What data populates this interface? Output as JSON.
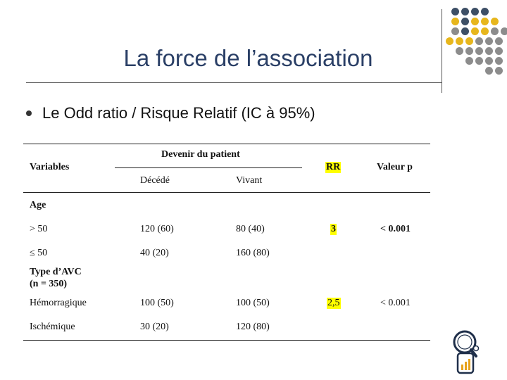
{
  "slide": {
    "title": "La force de l’association",
    "bullet": "Le Odd ratio / Risque Relatif (IC à 95%)"
  },
  "colors": {
    "title": "#2a3f66",
    "navy_dot": "#3d4f66",
    "gold_dot": "#e7b61c",
    "gray_dot": "#8c8c8c",
    "highlight": "#ffff00"
  },
  "decoration": {
    "dot_rows": [
      [
        "navy",
        "navy",
        "navy",
        "navy"
      ],
      [
        "gold",
        "navy",
        "gold",
        "gold",
        "gold"
      ],
      [
        "gray",
        "navy",
        "gold",
        "gold",
        "gray",
        "gray"
      ],
      [
        "gold",
        "gold",
        "gold",
        "gray",
        "gray",
        "gray"
      ],
      [
        "gray",
        "gray",
        "gray",
        "gray",
        "gray"
      ],
      [
        "gray",
        "gray",
        "gray",
        "gray"
      ],
      [
        "gray",
        "gray"
      ]
    ],
    "logo_icon": "magnifier-chart-icon"
  },
  "table": {
    "variables_header": "Variables",
    "outcome_header": "Devenir du patient",
    "deceased_header": "Décédé",
    "alive_header": "Vivant",
    "rr_header": "RR",
    "p_header": "Valeur p",
    "rows": [
      {
        "label": "Age",
        "bold": true
      },
      {
        "label": "> 50",
        "deceased": "120 (60)",
        "alive": "80 (40)",
        "rr": "3",
        "p": "< 0.001"
      },
      {
        "label": "≤ 50",
        "deceased": "40 (20)",
        "alive": "160 (80)"
      },
      {
        "label": "Type d’AVC",
        "label2": "(n = 350)",
        "bold": true
      },
      {
        "label": "Hémorragique",
        "deceased": "100 (50)",
        "alive": "100 (50)",
        "rr": "2,5",
        "p": "< 0.001"
      },
      {
        "label": "Ischémique",
        "deceased": "30 (20)",
        "alive": "120 (80)"
      }
    ]
  }
}
